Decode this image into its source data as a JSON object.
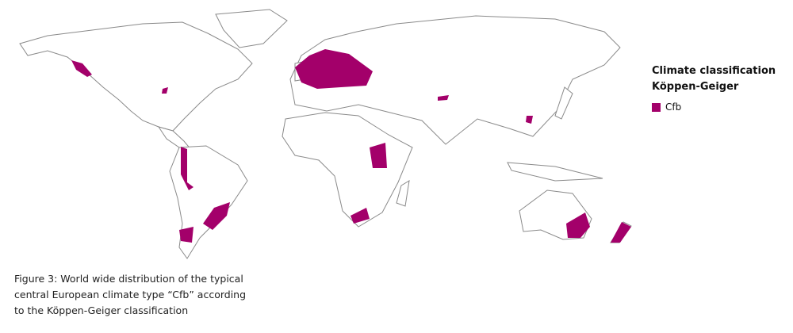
{
  "legend": {
    "title_line1": "Climate classification",
    "title_line2": "Köppen-Geiger",
    "items": [
      {
        "label": "Cfb",
        "color": "#a3006a"
      }
    ]
  },
  "caption": {
    "line1": "Figure 3: World wide distribution of the typical",
    "line2": "central European climate type “Cfb” according",
    "line3": "to the Köppen-Geiger classification"
  },
  "map": {
    "land_outline_color": "#8a8a8a",
    "highlight_color": "#a3006a"
  }
}
